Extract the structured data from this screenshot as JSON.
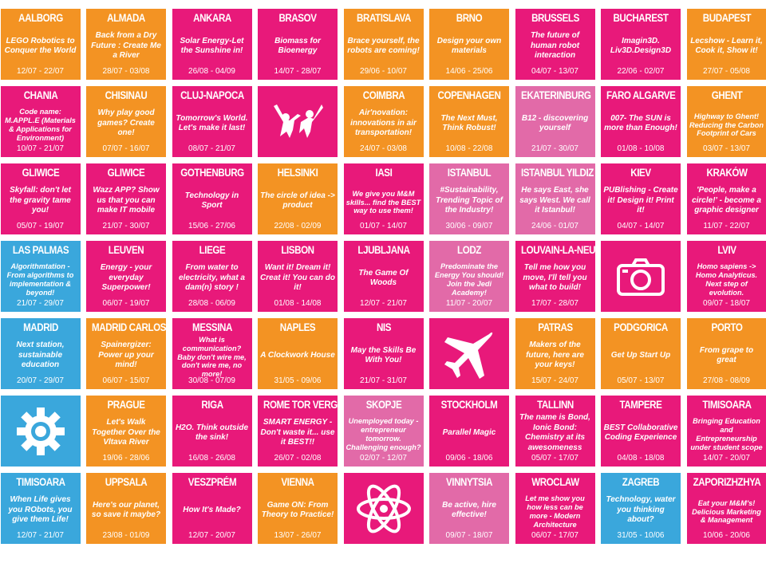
{
  "colors": {
    "orange": "#f39323",
    "pink": "#e8197a",
    "lightpink": "#e26aa8",
    "blue": "#3aa7dc"
  },
  "tiles": [
    {
      "city": "AALBORG",
      "desc": "LEGO Robotics to Conquer the World",
      "dates": "12/07 - 22/07",
      "color": "orange"
    },
    {
      "city": "ALMADA",
      "desc": "Back from a Dry Future : Create Me a River",
      "dates": "28/07 - 03/08",
      "color": "orange"
    },
    {
      "city": "ANKARA",
      "desc": "Solar Energy-Let the Sunshine in!",
      "dates": "26/08 - 04/09",
      "color": "pink"
    },
    {
      "city": "BRASOV",
      "desc": "Biomass for Bioenergy",
      "dates": "14/07 - 28/07",
      "color": "pink"
    },
    {
      "city": "BRATISLAVA",
      "desc": "Brace yourself, the robots are coming!",
      "dates": "29/06 - 10/07",
      "color": "orange"
    },
    {
      "city": "BRNO",
      "desc": "Design your own materials",
      "dates": "14/06 - 25/06",
      "color": "orange"
    },
    {
      "city": "BRUSSELS",
      "desc": "The future of human robot interaction",
      "dates": "04/07 - 13/07",
      "color": "pink"
    },
    {
      "city": "BUCHAREST",
      "desc": "Imagin3D. Liv3D.Design3D",
      "dates": "22/06 - 02/07",
      "color": "pink"
    },
    {
      "city": "BUDAPEST",
      "desc": "Lecshow - Learn it, Cook it, Show it!",
      "dates": "27/07 - 05/08",
      "color": "orange"
    },
    {
      "city": "CHANIA",
      "desc": "Code name: M.APPL.E (Materials & Applications for Environment)",
      "dates": "10/07 - 21/07",
      "color": "pink",
      "small": true
    },
    {
      "city": "CHISINAU",
      "desc": "Why play good games? Create one!",
      "dates": "07/07 - 16/07",
      "color": "orange"
    },
    {
      "city": "CLUJ-NAPOCA",
      "desc": "Tomorrow's World. Let's make it last!",
      "dates": "08/07 - 21/07",
      "color": "pink"
    },
    {
      "city": "",
      "desc": "",
      "dates": "",
      "color": "pink",
      "icon": "people-icon"
    },
    {
      "city": "COIMBRA",
      "desc": "Air'novation: innovations in air transportation!",
      "dates": "24/07 - 03/08",
      "color": "orange"
    },
    {
      "city": "COPENHAGEN",
      "desc": "The Next Must, Think Robust!",
      "dates": "10/08 - 22/08",
      "color": "orange"
    },
    {
      "city": "EKATERINBURG",
      "desc": "B12 - discovering yourself",
      "dates": "21/07 - 30/07",
      "color": "lightpink"
    },
    {
      "city": "FARO ALGARVE",
      "desc": "007- The SUN is more than Enough!",
      "dates": "01/08 - 10/08",
      "color": "pink"
    },
    {
      "city": "GHENT",
      "desc": "Highway to Ghent! Reducing the Carbon Footprint of Cars",
      "dates": "03/07 - 13/07",
      "color": "orange",
      "small": true
    },
    {
      "city": "GLIWICE",
      "desc": "Skyfall: don't let the gravity tame you!",
      "dates": "05/07 - 19/07",
      "color": "pink"
    },
    {
      "city": "GLIWICE",
      "desc": "Wazz APP? Show us that you can make IT mobile",
      "dates": "21/07 - 30/07",
      "color": "pink"
    },
    {
      "city": "GOTHENBURG",
      "desc": "Technology in Sport",
      "dates": "15/06 - 27/06",
      "color": "pink"
    },
    {
      "city": "HELSINKI",
      "desc": "The circle of idea -> product",
      "dates": "22/08 - 02/09",
      "color": "orange"
    },
    {
      "city": "IASI",
      "desc": "We give you M&M skills... find the BEST way to use them!",
      "dates": "01/07 - 14/07",
      "color": "pink",
      "small": true
    },
    {
      "city": "ISTANBUL",
      "desc": "#Sustainability, Trending Topic of the Industry!",
      "dates": "30/06 - 09/07",
      "color": "lightpink"
    },
    {
      "city": "ISTANBUL YILDIZ",
      "desc": "He says East, she says West. We call it Istanbul!",
      "dates": "24/06 - 01/07",
      "color": "lightpink"
    },
    {
      "city": "KIEV",
      "desc": "PUBlishing - Create it! Design it! Print it!",
      "dates": "04/07 - 14/07",
      "color": "pink"
    },
    {
      "city": "KRAKÓW",
      "desc": "'People, make a circle!' - become a graphic designer",
      "dates": "11/07 - 22/07",
      "color": "pink"
    },
    {
      "city": "LAS PALMAS",
      "desc": "Algorithmtation - From algorithms to implementation & beyond!",
      "dates": "21/07 - 29/07",
      "color": "blue",
      "small": true
    },
    {
      "city": "LEUVEN",
      "desc": "Energy - your everyday Superpower!",
      "dates": "06/07 - 19/07",
      "color": "pink"
    },
    {
      "city": "LIEGE",
      "desc": "From water to electricity, what a dam(n) story !",
      "dates": "28/08 - 06/09",
      "color": "pink"
    },
    {
      "city": "LISBON",
      "desc": "Want it! Dream it! Creat it! You can do it!",
      "dates": "01/08 - 14/08",
      "color": "pink"
    },
    {
      "city": "LJUBLJANA",
      "desc": "The Game Of Woods",
      "dates": "12/07 - 21/07",
      "color": "pink"
    },
    {
      "city": "LODZ",
      "desc": "Predominate the Energy You should! Join the Jedi Academy!",
      "dates": "11/07 - 20/07",
      "color": "lightpink",
      "small": true
    },
    {
      "city": "LOUVAIN-LA-NEUVE",
      "desc": "Tell me how you move, I'll tell you what to build!",
      "dates": "17/07 - 28/07",
      "color": "pink"
    },
    {
      "city": "",
      "desc": "",
      "dates": "",
      "color": "pink",
      "icon": "camera-icon"
    },
    {
      "city": "LVIV",
      "desc": "Homo sapiens -> Homo Analyticus. Next step of evolution.",
      "dates": "09/07 - 18/07",
      "color": "pink",
      "small": true
    },
    {
      "city": "MADRID",
      "desc": "Next station, sustainable education",
      "dates": "20/07 - 29/07",
      "color": "blue"
    },
    {
      "city": "MADRID CARLOS III",
      "desc": "Spainergizer: Power up your mind!",
      "dates": "06/07 - 15/07",
      "color": "orange"
    },
    {
      "city": "MESSINA",
      "desc": "What is communication? Baby don't wire me, don't wire me, no more!",
      "dates": "30/08 - 07/09",
      "color": "pink",
      "small": true
    },
    {
      "city": "NAPLES",
      "desc": "A Clockwork House",
      "dates": "31/05 - 09/06",
      "color": "orange"
    },
    {
      "city": "NIS",
      "desc": "May the Skills Be With You!",
      "dates": "21/07 - 31/07",
      "color": "pink"
    },
    {
      "city": "",
      "desc": "",
      "dates": "",
      "color": "pink",
      "icon": "airplane-icon"
    },
    {
      "city": "PATRAS",
      "desc": "Makers of the future, here are your keys!",
      "dates": "15/07 - 24/07",
      "color": "orange"
    },
    {
      "city": "PODGORICA",
      "desc": "Get Up Start Up",
      "dates": "05/07 - 13/07",
      "color": "orange"
    },
    {
      "city": "PORTO",
      "desc": "From grape to great",
      "dates": "27/08 - 08/09",
      "color": "orange"
    },
    {
      "city": "",
      "desc": "",
      "dates": "",
      "color": "blue",
      "icon": "gear-icon"
    },
    {
      "city": "PRAGUE",
      "desc": "Let's Walk Together Over the Vltava River",
      "dates": "19/06 - 28/06",
      "color": "orange"
    },
    {
      "city": "RIGA",
      "desc": "H2O. Think outside the sink!",
      "dates": "16/08 - 26/08",
      "color": "pink"
    },
    {
      "city": "ROME TOR VERGATA",
      "desc": "SMART ENERGY - Don't waste it... use it BEST!!",
      "dates": "26/07 - 02/08",
      "color": "pink"
    },
    {
      "city": "SKOPJE",
      "desc": "Unemployed today - entrepreneur tomorrow. Challenging enough?",
      "dates": "02/07 - 12/07",
      "color": "lightpink",
      "small": true
    },
    {
      "city": "STOCKHOLM",
      "desc": "Parallel Magic",
      "dates": "09/06 - 18/06",
      "color": "pink"
    },
    {
      "city": "TALLINN",
      "desc": "The name is Bond, Ionic Bond: Chemistry at its awesomeness",
      "dates": "05/07 - 17/07",
      "color": "pink"
    },
    {
      "city": "TAMPERE",
      "desc": "BEST Collaborative Coding Experience",
      "dates": "04/08 - 18/08",
      "color": "pink"
    },
    {
      "city": "TIMISOARA",
      "desc": "Bringing Education and Entrepreneurship under student scope",
      "dates": "14/07 - 20/07",
      "color": "pink",
      "small": true
    },
    {
      "city": "TIMISOARA",
      "desc": "When Life gives you RObots, you give them Life!",
      "dates": "12/07 - 21/07",
      "color": "blue"
    },
    {
      "city": "UPPSALA",
      "desc": "Here's our planet, so save it maybe?",
      "dates": "23/08 - 01/09",
      "color": "orange"
    },
    {
      "city": "VESZPRÉM",
      "desc": "How It's Made?",
      "dates": "12/07 - 20/07",
      "color": "pink"
    },
    {
      "city": "VIENNA",
      "desc": "Game ON: From Theory to Practice!",
      "dates": "13/07 - 26/07",
      "color": "orange"
    },
    {
      "city": "",
      "desc": "",
      "dates": "",
      "color": "pink",
      "icon": "atom-icon"
    },
    {
      "city": "VINNYTSIA",
      "desc": "Be active, hire effective!",
      "dates": "09/07 - 18/07",
      "color": "lightpink"
    },
    {
      "city": "WROCLAW",
      "desc": "Let me show you how less can be more - Modern Architecture",
      "dates": "06/07 - 17/07",
      "color": "pink",
      "small": true
    },
    {
      "city": "ZAGREB",
      "desc": "Technology, water you thinking about?",
      "dates": "31/05 - 10/06",
      "color": "blue"
    },
    {
      "city": "ZAPORIZHZHYA",
      "desc": "Eat your M&M's! Delicious Marketing & Management",
      "dates": "10/06 - 20/06",
      "color": "pink",
      "small": true
    }
  ]
}
